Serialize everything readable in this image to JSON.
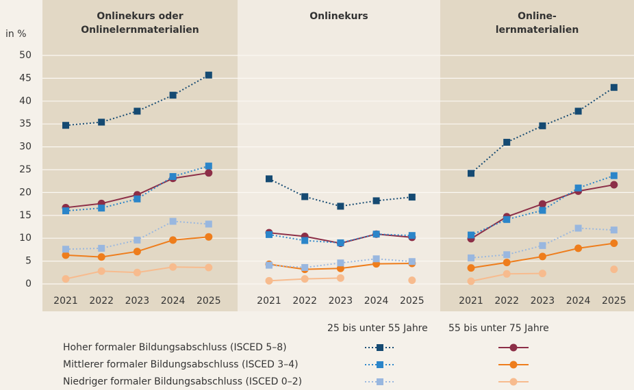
{
  "chart_data": [
    {
      "type": "line",
      "title": [
        "Onlinekurs oder",
        "Onlinelernmaterialien"
      ],
      "y_label": "in %",
      "categories": [
        "2021",
        "2022",
        "2023",
        "2024",
        "2025"
      ],
      "ylim": [
        0,
        50
      ],
      "yticks": [
        0,
        5,
        10,
        15,
        20,
        25,
        30,
        35,
        40,
        45,
        50
      ],
      "grid": true,
      "series": [
        {
          "color": "#154a72",
          "marker": "square",
          "dotted": true,
          "values": [
            34.7,
            35.4,
            37.8,
            41.3,
            45.7
          ]
        },
        {
          "color": "#8c2e47",
          "marker": "circle",
          "dotted": false,
          "values": [
            16.7,
            17.6,
            19.5,
            23.1,
            24.3
          ]
        },
        {
          "color": "#2b85c9",
          "marker": "square",
          "dotted": true,
          "values": [
            16.0,
            16.6,
            18.6,
            23.5,
            25.8
          ]
        },
        {
          "color": "#ee7d1c",
          "marker": "circle",
          "dotted": false,
          "values": [
            6.3,
            5.9,
            7.1,
            9.6,
            10.3
          ]
        },
        {
          "color": "#99b7df",
          "marker": "square",
          "dotted": true,
          "values": [
            7.6,
            7.8,
            9.6,
            13.7,
            13.1
          ]
        },
        {
          "color": "#f7bb8e",
          "marker": "circle",
          "dotted": false,
          "values": [
            1.1,
            2.8,
            2.5,
            3.7,
            3.6
          ]
        }
      ]
    },
    {
      "type": "line",
      "title": [
        "Onlinekurs"
      ],
      "categories": [
        "2021",
        "2022",
        "2023",
        "2024",
        "2025"
      ],
      "series": [
        {
          "color": "#154a72",
          "marker": "square",
          "dotted": true,
          "values": [
            23.0,
            19.1,
            17.0,
            18.2,
            19.0
          ]
        },
        {
          "color": "#8c2e47",
          "marker": "circle",
          "dotted": false,
          "values": [
            11.2,
            10.4,
            8.9,
            10.9,
            10.2
          ]
        },
        {
          "color": "#2b85c9",
          "marker": "square",
          "dotted": true,
          "values": [
            10.8,
            9.5,
            9.0,
            10.9,
            10.6
          ]
        },
        {
          "color": "#ee7d1c",
          "marker": "circle",
          "dotted": false,
          "values": [
            4.3,
            3.2,
            3.4,
            4.4,
            4.5
          ]
        },
        {
          "color": "#99b7df",
          "marker": "square",
          "dotted": true,
          "values": [
            4.1,
            3.6,
            4.6,
            5.5,
            4.9
          ]
        },
        {
          "color": "#f7bb8e",
          "marker": "circle",
          "dotted": false,
          "values": [
            0.7,
            1.1,
            1.3,
            null,
            0.8
          ]
        }
      ]
    },
    {
      "type": "line",
      "title": [
        "Online-",
        "lernmaterialien"
      ],
      "categories": [
        "2021",
        "2022",
        "2023",
        "2024",
        "2025"
      ],
      "series": [
        {
          "color": "#154a72",
          "marker": "square",
          "dotted": true,
          "values": [
            24.2,
            31.0,
            34.6,
            37.8,
            43.0
          ]
        },
        {
          "color": "#8c2e47",
          "marker": "circle",
          "dotted": false,
          "values": [
            9.9,
            14.7,
            17.5,
            20.3,
            21.7
          ]
        },
        {
          "color": "#2b85c9",
          "marker": "square",
          "dotted": true,
          "values": [
            10.7,
            14.1,
            16.1,
            21.0,
            23.7
          ]
        },
        {
          "color": "#ee7d1c",
          "marker": "circle",
          "dotted": false,
          "values": [
            3.5,
            4.7,
            6.0,
            7.8,
            8.9
          ]
        },
        {
          "color": "#99b7df",
          "marker": "square",
          "dotted": true,
          "values": [
            5.7,
            6.4,
            8.4,
            12.2,
            11.8
          ]
        },
        {
          "color": "#f7bb8e",
          "marker": "circle",
          "dotted": false,
          "values": [
            0.6,
            2.2,
            2.3,
            null,
            3.2
          ]
        }
      ]
    }
  ],
  "legend": {
    "columns": [
      "25 bis unter 55 Jahre",
      "55 bis unter 75 Jahre"
    ],
    "rows": [
      "Hoher formaler Bildungsabschluss (ISCED 5–8)",
      "Mittlerer formaler Bildungsabschluss (ISCED 3–4)",
      "Niedriger formaler Bildungsabschluss (ISCED 0–2)"
    ]
  }
}
